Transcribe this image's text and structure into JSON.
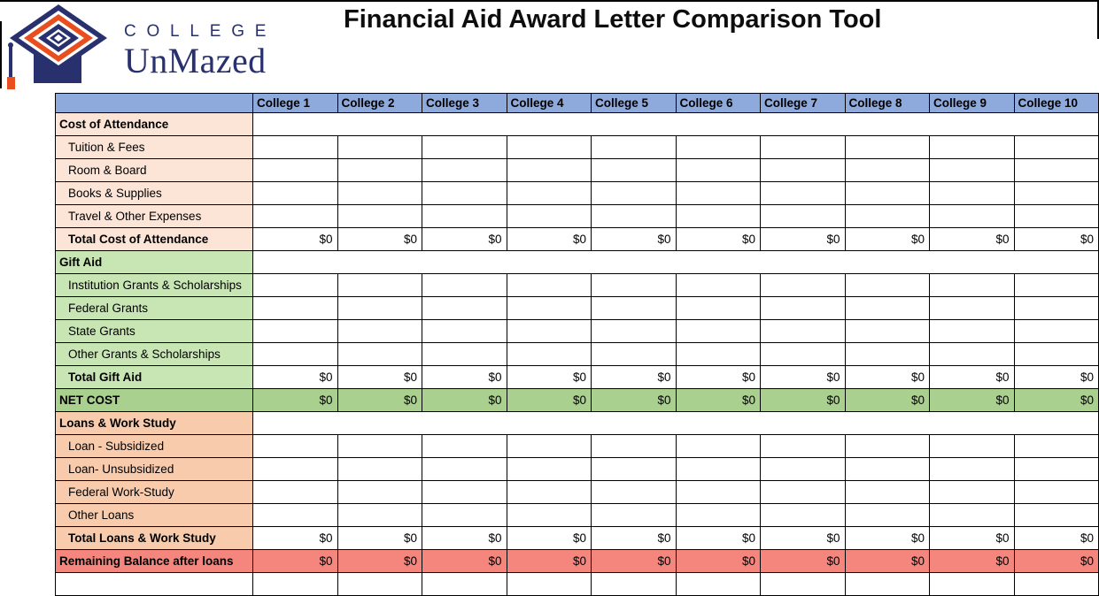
{
  "header": {
    "logo": {
      "icon": "graduation-cap-icon",
      "brand_top": "COLLEGE",
      "brand_bottom": "UnMazed"
    },
    "title": "Financial Aid Award Letter Comparison Tool"
  },
  "colors": {
    "header_blue": "#8EA9DB",
    "cost_section_peach": "#FCE4D6",
    "gift_section_green": "#C8E6B4",
    "net_cost_green": "#A9D08E",
    "loans_section_orange": "#F8CBAD",
    "remaining_balance_red": "#F4867E",
    "brand_navy": "#28316E",
    "brand_orange": "#E84E1E"
  },
  "table": {
    "columns": [
      "",
      "College 1",
      "College 2",
      "College 3",
      "College 4",
      "College 5",
      "College 6",
      "College 7",
      "College 8",
      "College 9",
      "College 10"
    ],
    "rows": [
      {
        "label": "Cost of Attendance",
        "kind": "section",
        "theme": "peach",
        "bold": true,
        "indent": false
      },
      {
        "label": "Tuition & Fees",
        "kind": "empty",
        "theme": "peach",
        "bold": false,
        "indent": true
      },
      {
        "label": "Room & Board",
        "kind": "empty",
        "theme": "peach",
        "bold": false,
        "indent": true
      },
      {
        "label": "Books & Supplies",
        "kind": "empty",
        "theme": "peach",
        "bold": false,
        "indent": true
      },
      {
        "label": "Travel & Other Expenses",
        "kind": "empty",
        "theme": "peach",
        "bold": false,
        "indent": true
      },
      {
        "label": "Total Cost of Attendance",
        "kind": "values",
        "theme": "peach",
        "bold": true,
        "indent": true,
        "values": [
          "$0",
          "$0",
          "$0",
          "$0",
          "$0",
          "$0",
          "$0",
          "$0",
          "$0",
          "$0"
        ]
      },
      {
        "label": "Gift Aid",
        "kind": "section",
        "theme": "green",
        "bold": true,
        "indent": false
      },
      {
        "label": "Institution Grants & Scholarships",
        "kind": "empty",
        "theme": "green",
        "bold": false,
        "indent": true
      },
      {
        "label": "Federal Grants",
        "kind": "empty",
        "theme": "green",
        "bold": false,
        "indent": true
      },
      {
        "label": "State Grants",
        "kind": "empty",
        "theme": "green",
        "bold": false,
        "indent": true
      },
      {
        "label": "Other Grants & Scholarships",
        "kind": "empty",
        "theme": "green",
        "bold": false,
        "indent": true
      },
      {
        "label": "Total Gift Aid",
        "kind": "values",
        "theme": "green",
        "bold": true,
        "indent": true,
        "values": [
          "$0",
          "$0",
          "$0",
          "$0",
          "$0",
          "$0",
          "$0",
          "$0",
          "$0",
          "$0"
        ]
      },
      {
        "label": "NET COST",
        "kind": "values",
        "theme": "greendark",
        "row_theme": "greendark",
        "bold": true,
        "indent": false,
        "values": [
          "$0",
          "$0",
          "$0",
          "$0",
          "$0",
          "$0",
          "$0",
          "$0",
          "$0",
          "$0"
        ]
      },
      {
        "label": "Loans & Work Study",
        "kind": "section",
        "theme": "orange",
        "bold": true,
        "indent": false
      },
      {
        "label": "Loan - Subsidized",
        "kind": "empty",
        "theme": "orange",
        "bold": false,
        "indent": true
      },
      {
        "label": "Loan- Unsubsidized",
        "kind": "empty",
        "theme": "orange",
        "bold": false,
        "indent": true
      },
      {
        "label": "Federal Work-Study",
        "kind": "empty",
        "theme": "orange",
        "bold": false,
        "indent": true
      },
      {
        "label": "Other Loans",
        "kind": "empty",
        "theme": "orange",
        "bold": false,
        "indent": true
      },
      {
        "label": "Total Loans & Work Study",
        "kind": "values",
        "theme": "orange",
        "bold": true,
        "indent": true,
        "values": [
          "$0",
          "$0",
          "$0",
          "$0",
          "$0",
          "$0",
          "$0",
          "$0",
          "$0",
          "$0"
        ]
      },
      {
        "label": "Remaining Balance after loans",
        "kind": "values",
        "theme": "red",
        "row_theme": "red",
        "bold": true,
        "indent": false,
        "values": [
          "$0",
          "$0",
          "$0",
          "$0",
          "$0",
          "$0",
          "$0",
          "$0",
          "$0",
          "$0"
        ]
      },
      {
        "label": "",
        "kind": "blank",
        "theme": "white",
        "bold": false,
        "indent": false
      }
    ]
  }
}
